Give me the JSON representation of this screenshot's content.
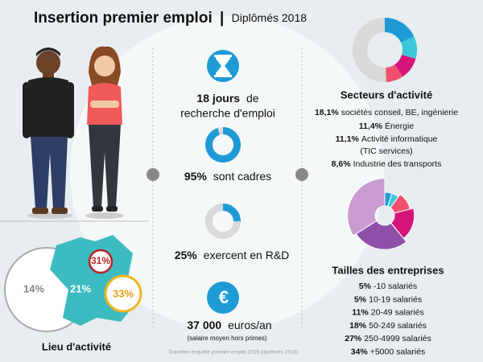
{
  "header": {
    "title": "Insertion premier emploi",
    "separator": "|",
    "subtitle": "Diplômés 2018"
  },
  "search": {
    "value": "18 jours",
    "text": "de",
    "line2": "recherche d'emploi"
  },
  "cadres": {
    "value": 95,
    "label": "95%",
    "text": "sont cadres"
  },
  "rd": {
    "value": 25,
    "label": "25%",
    "text": "exercent en R&D"
  },
  "salary": {
    "value": "37 000",
    "text": "euros/an",
    "note": "(salaire moyen hors primes)"
  },
  "sectors": {
    "title": "Secteurs d'activité",
    "items": [
      {
        "value": 18.1,
        "label": "18,1%",
        "name": "sociétés conseil, BE, ingénierie"
      },
      {
        "value": 11.4,
        "label": "11,4%",
        "name": "Énergie"
      },
      {
        "value": 11.1,
        "label": "11,1%",
        "name": "Activité informatique",
        "detail": "(TIC services)"
      },
      {
        "value": 8.6,
        "label": "8,6%",
        "name": "Industrie des transports"
      }
    ]
  },
  "sizes": {
    "title": "Tailles des entreprises",
    "items": [
      {
        "value": 5,
        "label": "5%",
        "name": "-10 salariés"
      },
      {
        "value": 5,
        "label": "5%",
        "name": "10-19 salariés"
      },
      {
        "value": 11,
        "label": "11%",
        "name": "20-49 salariés"
      },
      {
        "value": 18,
        "label": "18%",
        "name": "50-249 salariés"
      },
      {
        "value": 27,
        "label": "27%",
        "name": "250-4999 salariés"
      },
      {
        "value": 34,
        "label": "34%",
        "name": "+5000 salariés"
      }
    ]
  },
  "location": {
    "title": "Lieu d'activité",
    "items": [
      {
        "value": 14,
        "label": "14%"
      },
      {
        "value": 21,
        "label": "21%"
      },
      {
        "value": 31,
        "label": "31%"
      },
      {
        "value": 33,
        "label": "33%"
      }
    ]
  },
  "footer": "Données enquête premier emploi 2019 (diplômés 2018)"
}
